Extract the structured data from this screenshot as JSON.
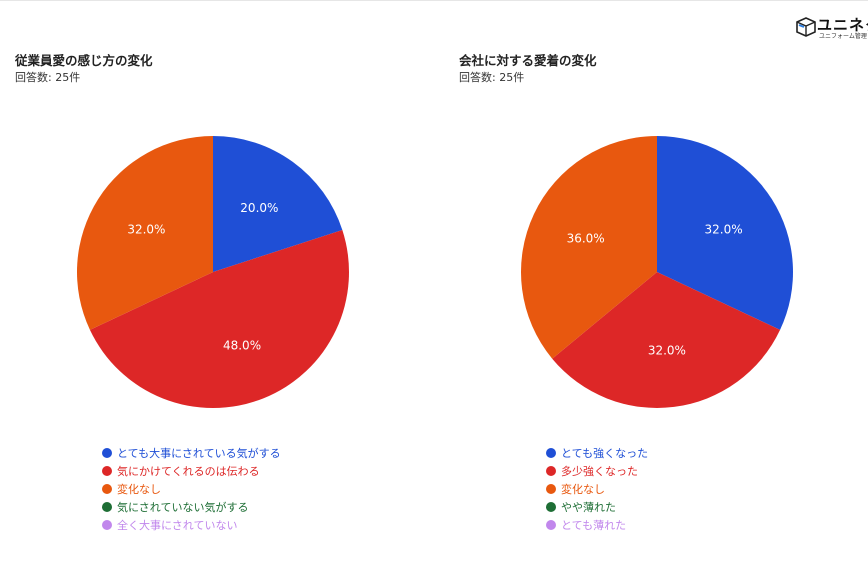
{
  "brand": {
    "name": "ユニネク",
    "tagline": "ユニフォーム管理"
  },
  "charts": [
    {
      "title": "従業員愛の感じ方の変化",
      "subtitle": "回答数: 25件"
    },
    {
      "title": "会社に対する愛着の変化",
      "subtitle": "回答数: 25件"
    }
  ],
  "chart_data": [
    {
      "type": "pie",
      "title": "従業員愛の感じ方の変化",
      "subtitle": "回答数: 25件",
      "legend_position": "bottom",
      "slices": [
        {
          "label": "とても大事にされている気がする",
          "value": 20.0,
          "display": "20.0%",
          "color": "#1f4fd6"
        },
        {
          "label": "気にかけてくれるのは伝わる",
          "value": 48.0,
          "display": "48.0%",
          "color": "#dd2727"
        },
        {
          "label": "変化なし",
          "value": 32.0,
          "display": "32.0%",
          "color": "#e8580f"
        },
        {
          "label": "気にされていない気がする",
          "value": 0,
          "display": "",
          "color": "#1e6e35"
        },
        {
          "label": "全く大事にされていない",
          "value": 0,
          "display": "",
          "color": "#c187ec"
        }
      ]
    },
    {
      "type": "pie",
      "title": "会社に対する愛着の変化",
      "subtitle": "回答数: 25件",
      "legend_position": "bottom",
      "slices": [
        {
          "label": "とても強くなった",
          "value": 32.0,
          "display": "32.0%",
          "color": "#1f4fd6"
        },
        {
          "label": "多少強くなった",
          "value": 32.0,
          "display": "32.0%",
          "color": "#dd2727"
        },
        {
          "label": "変化なし",
          "value": 36.0,
          "display": "36.0%",
          "color": "#e8580f"
        },
        {
          "label": "やや薄れた",
          "value": 0,
          "display": "",
          "color": "#1e6e35"
        },
        {
          "label": "とても薄れた",
          "value": 0,
          "display": "",
          "color": "#c187ec"
        }
      ]
    }
  ]
}
